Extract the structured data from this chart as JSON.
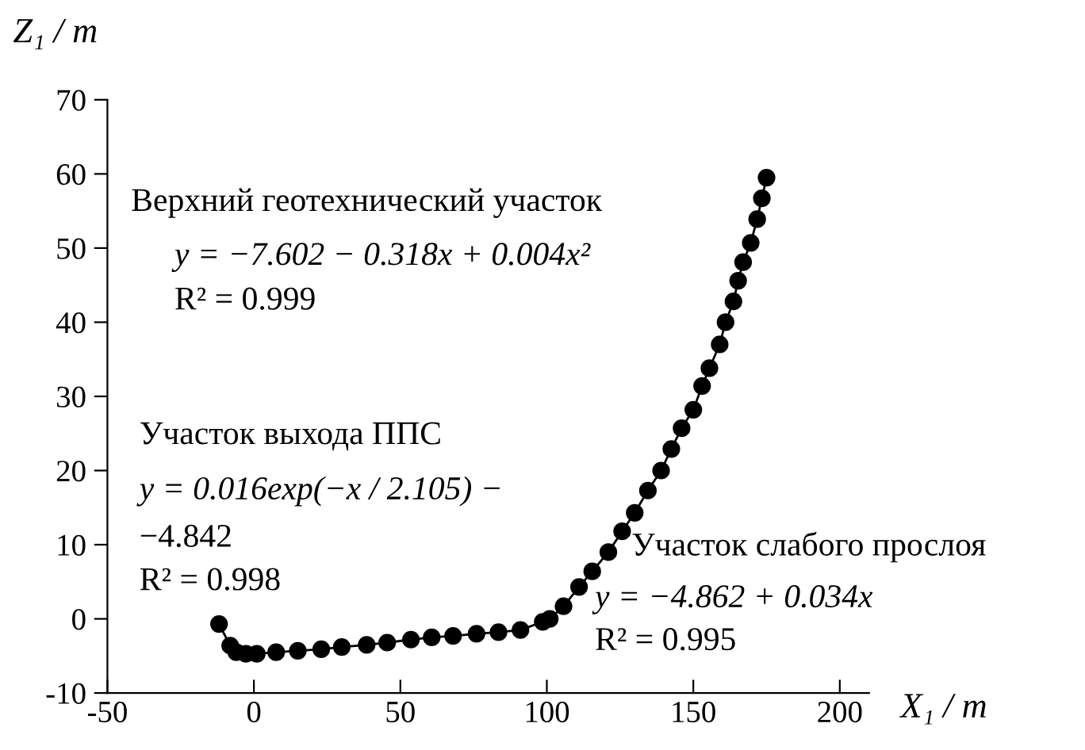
{
  "chart_data": {
    "type": "line",
    "xlabel": "X₁ / m",
    "ylabel": "Z₁ / m",
    "xlim": [
      -50,
      210
    ],
    "ylim": [
      -10,
      70
    ],
    "xticks": [
      -50,
      0,
      50,
      100,
      150,
      200
    ],
    "yticks": [
      -10,
      0,
      10,
      20,
      30,
      40,
      50,
      60,
      70
    ],
    "marker": "circle",
    "line_style": "solid",
    "grid": false,
    "legend": false,
    "series": [
      {
        "color": "#000000",
        "x": [
          -11.9,
          -8.1,
          -6,
          -2.7,
          1,
          7.6,
          15,
          23,
          30,
          38.5,
          45.5,
          53.6,
          60.7,
          68,
          76,
          83.5,
          91,
          98.6,
          101,
          105.7,
          111,
          115.5,
          121,
          125.7,
          130,
          134.5,
          139,
          142.5,
          146,
          150,
          153,
          155.5,
          159,
          161,
          163.7,
          165.3,
          167,
          169.6,
          171.8,
          173.4,
          175
        ],
        "values": [
          -0.7,
          -3.6,
          -4.5,
          -4.7,
          -4.7,
          -4.5,
          -4.3,
          -4.1,
          -3.8,
          -3.5,
          -3.2,
          -2.8,
          -2.5,
          -2.3,
          -2,
          -1.8,
          -1.5,
          -0.4,
          0,
          1.7,
          4.3,
          6.4,
          9,
          11.8,
          14.3,
          17.3,
          20,
          22.9,
          25.7,
          28.2,
          31.4,
          33.8,
          37,
          40,
          42.8,
          45.6,
          48.1,
          50.7,
          53.9,
          56.7,
          59.5
        ]
      }
    ],
    "annotations": [
      "Верхний геотехнический участок",
      "y = −7.602 − 0.318x + 0.004x²",
      "R² = 0.999",
      "Участок выхода ППС",
      "y = 0.016exp(−x / 2.105) −",
      "−4.842",
      "R² = 0.998",
      "Участок слабого прослоя",
      "y = −4.862 + 0.034x",
      "R² = 0.995"
    ]
  }
}
